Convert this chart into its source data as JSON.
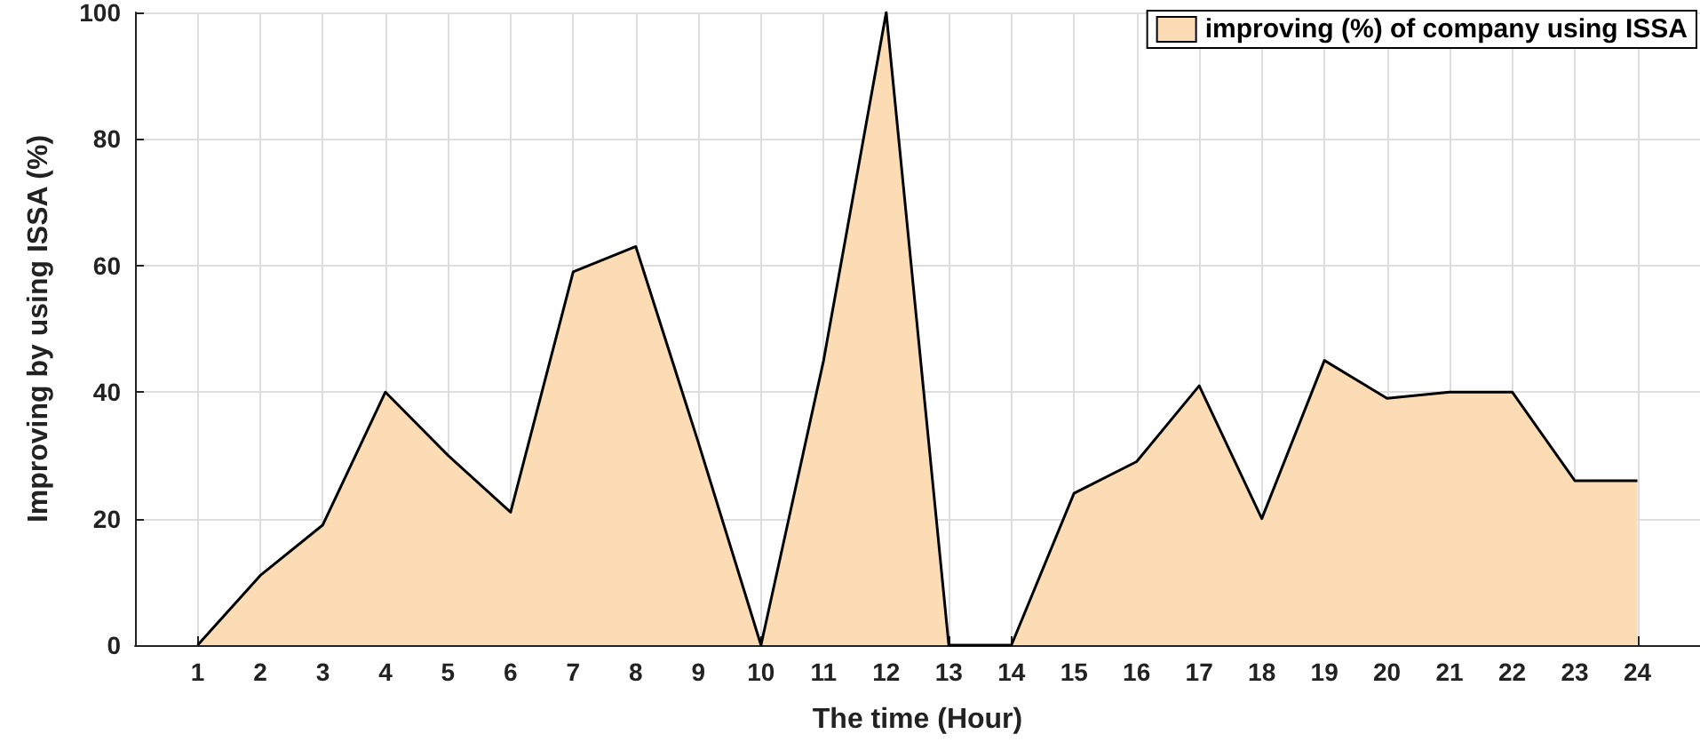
{
  "chart_data": {
    "type": "area",
    "xlabel": "The time (Hour)",
    "ylabel": "Improving by using ISSA (%)",
    "x": [
      1,
      2,
      3,
      4,
      5,
      6,
      7,
      8,
      9,
      10,
      11,
      12,
      13,
      14,
      15,
      16,
      17,
      18,
      19,
      20,
      21,
      22,
      23,
      24
    ],
    "series": [
      {
        "name": "improving (%) of company using ISSA",
        "color": "#fcdcb4",
        "values": [
          0,
          11,
          19,
          40,
          30,
          21,
          59,
          63,
          32,
          0,
          45,
          100,
          0,
          0,
          24,
          29,
          41,
          20,
          45,
          39,
          40,
          40,
          26,
          26
        ]
      }
    ],
    "xlim": [
      0,
      25
    ],
    "xticks": [
      1,
      2,
      3,
      4,
      5,
      6,
      7,
      8,
      9,
      10,
      11,
      12,
      13,
      14,
      15,
      16,
      17,
      18,
      19,
      20,
      21,
      22,
      23,
      24
    ],
    "ylim": [
      0,
      100
    ],
    "yticks": [
      0,
      20,
      40,
      60,
      80,
      100
    ],
    "grid": true,
    "legend": "top right",
    "marker": "none",
    "line_style": "solid"
  }
}
